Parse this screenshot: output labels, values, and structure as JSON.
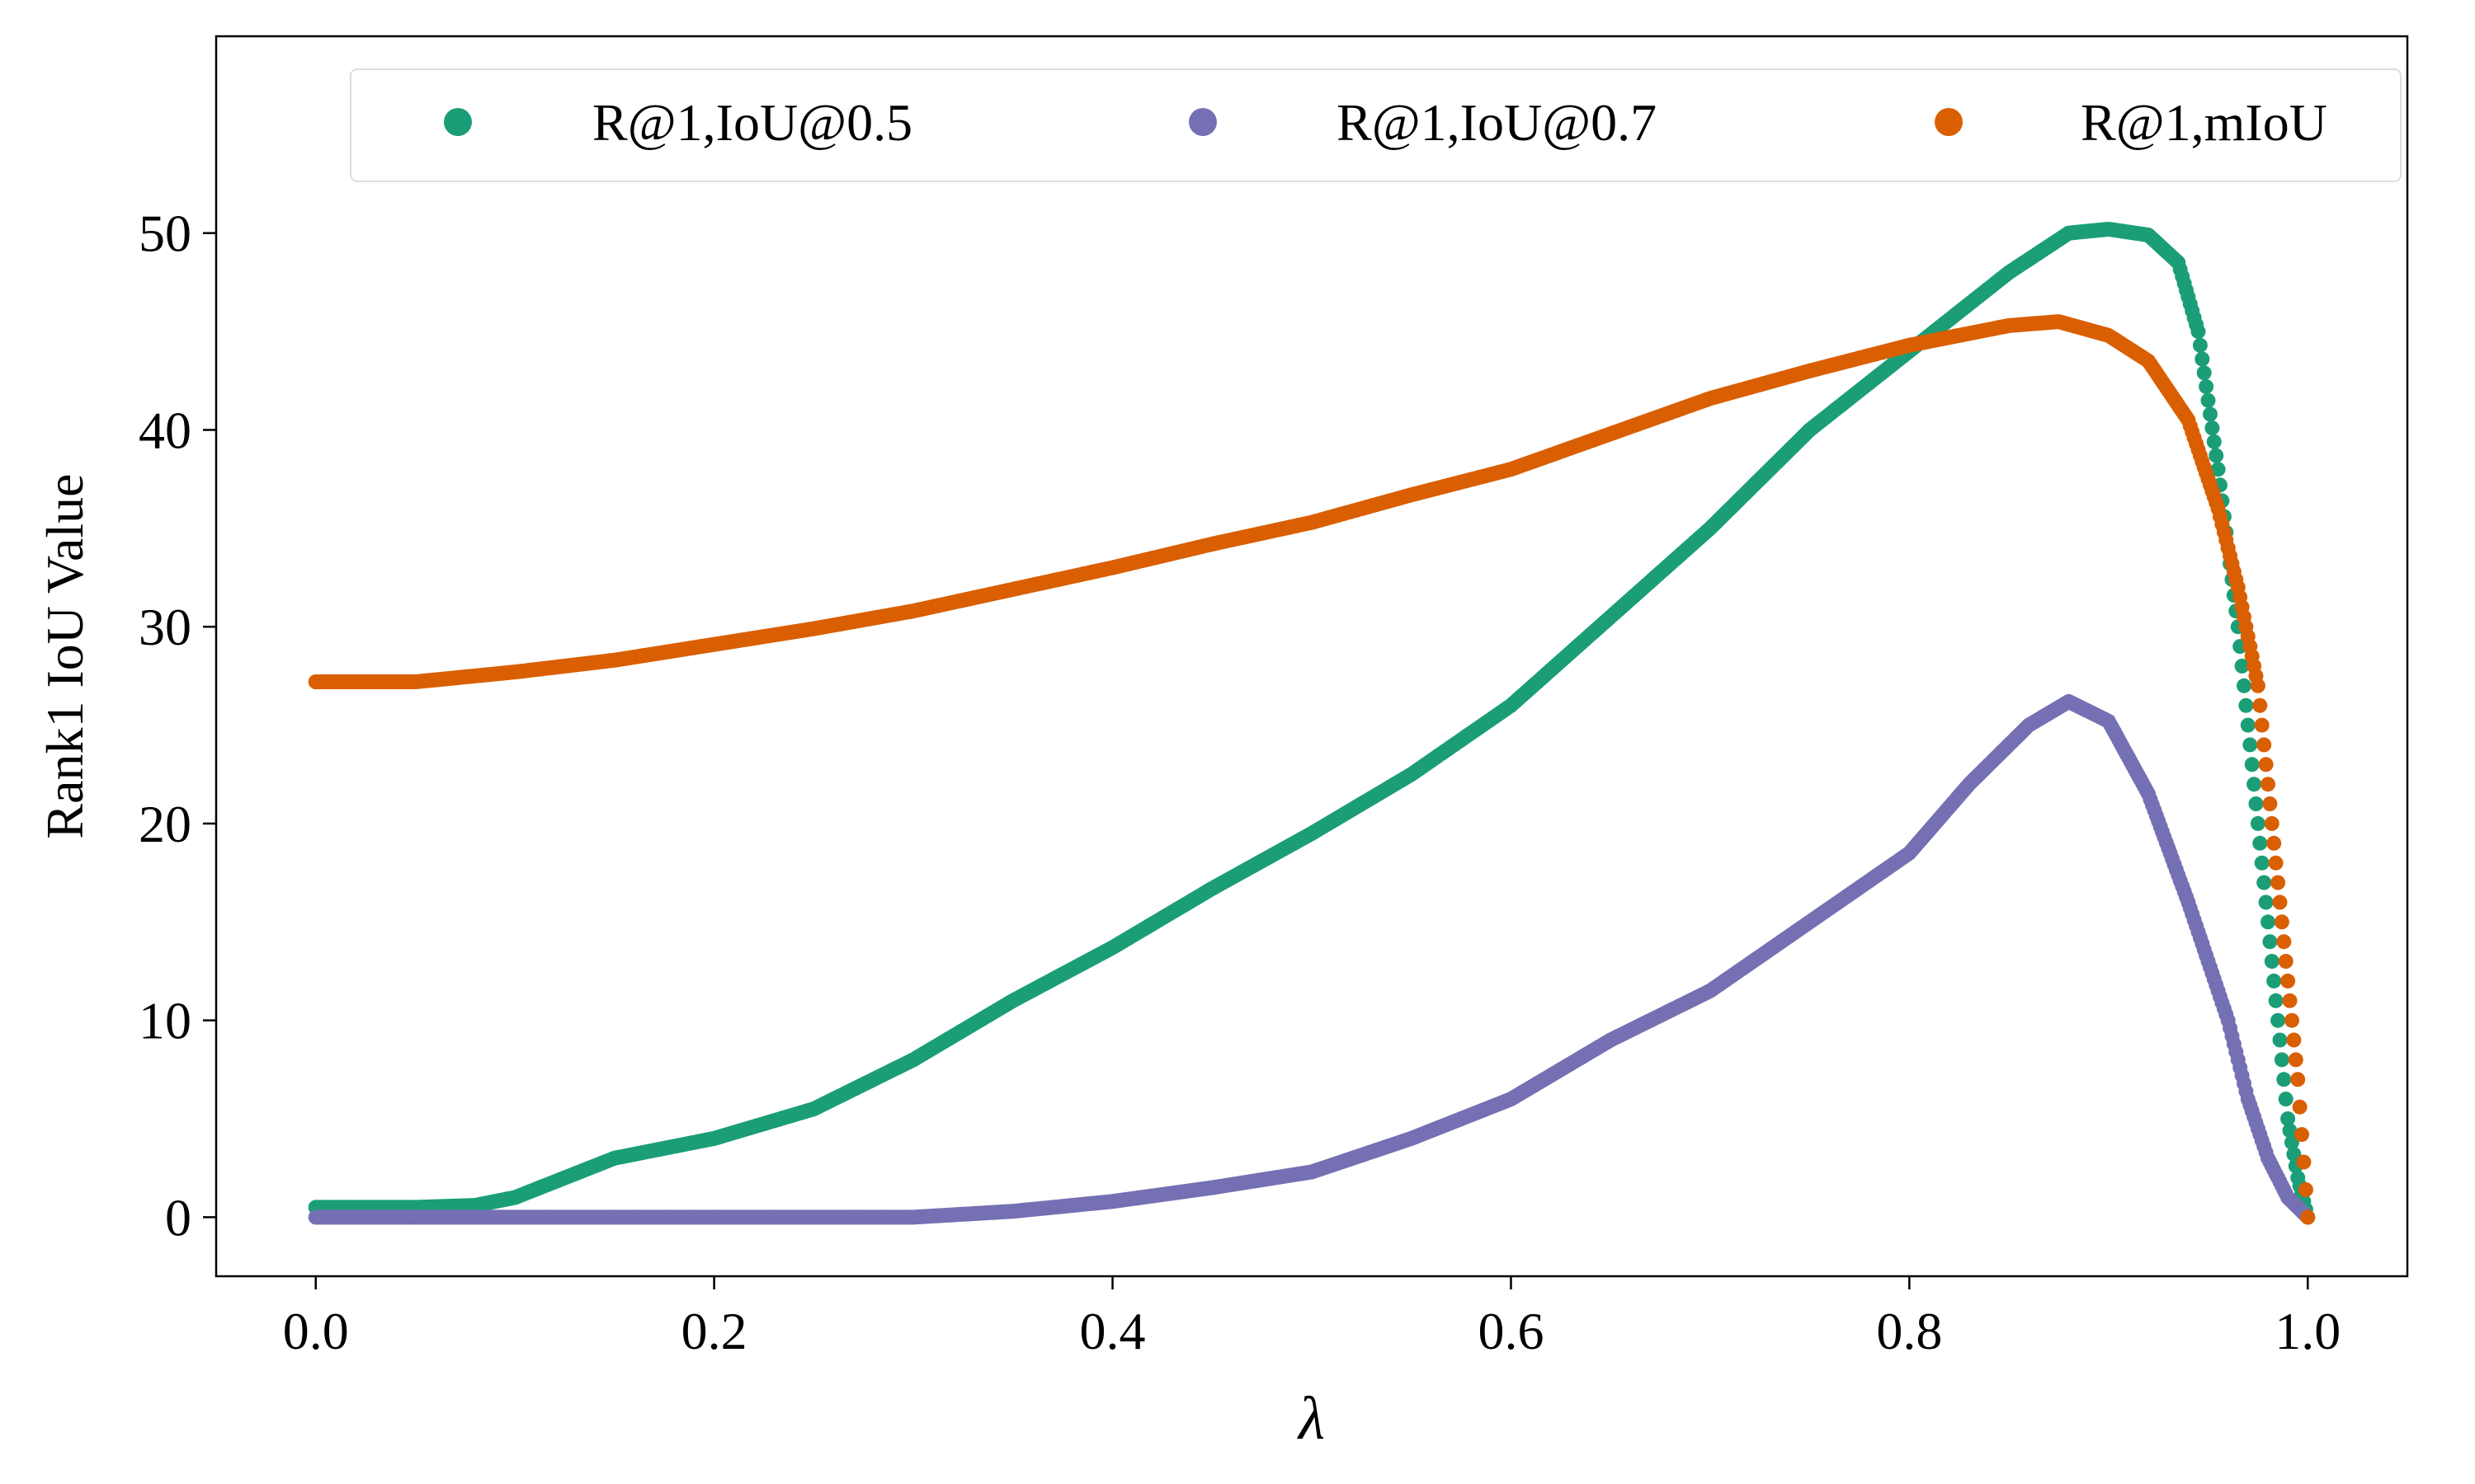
{
  "chart_data": {
    "type": "scatter",
    "xlabel": "λ",
    "ylabel": "Rank1 IoU Value",
    "xlim": [
      -0.05,
      1.05
    ],
    "ylim": [
      -3,
      60
    ],
    "xticks": [
      0.0,
      0.2,
      0.4,
      0.6,
      0.8,
      1.0
    ],
    "xtick_labels": [
      "0.0",
      "0.2",
      "0.4",
      "0.6",
      "0.8",
      "1.0"
    ],
    "yticks": [
      0,
      10,
      20,
      30,
      40,
      50
    ],
    "ytick_labels": [
      "0",
      "10",
      "20",
      "30",
      "40",
      "50"
    ],
    "grid": false,
    "legend": {
      "position": "top",
      "ncol": 3
    },
    "colors": [
      "#1b9e77",
      "#7570b3",
      "#d95f02"
    ],
    "series": [
      {
        "name": "R@1,IoU@0.5",
        "color": "#1b9e77",
        "x": [
          0.0,
          0.05,
          0.08,
          0.1,
          0.12,
          0.15,
          0.2,
          0.25,
          0.3,
          0.35,
          0.4,
          0.45,
          0.5,
          0.55,
          0.6,
          0.65,
          0.7,
          0.75,
          0.8,
          0.85,
          0.88,
          0.9,
          0.92,
          0.935,
          0.945,
          0.955,
          0.965,
          0.97,
          0.975,
          0.98,
          0.985,
          0.99,
          0.995,
          1.0
        ],
        "y": [
          0.5,
          0.5,
          0.6,
          1.0,
          1.8,
          3.0,
          4.0,
          5.5,
          8.0,
          11.0,
          13.7,
          16.7,
          19.5,
          22.5,
          26.0,
          30.5,
          35.0,
          40.0,
          44.0,
          48.0,
          50.0,
          50.2,
          49.9,
          48.5,
          45.0,
          38.0,
          30.0,
          25.0,
          20.0,
          15.0,
          10.0,
          5.0,
          2.0,
          0.0
        ]
      },
      {
        "name": "R@1,IoU@0.7",
        "color": "#7570b3",
        "x": [
          0.0,
          0.1,
          0.2,
          0.3,
          0.35,
          0.4,
          0.45,
          0.5,
          0.55,
          0.6,
          0.65,
          0.7,
          0.75,
          0.8,
          0.83,
          0.86,
          0.88,
          0.9,
          0.92,
          0.94,
          0.96,
          0.97,
          0.98,
          0.99,
          1.0
        ],
        "y": [
          0.0,
          0.0,
          0.0,
          0.0,
          0.3,
          0.8,
          1.5,
          2.3,
          4.0,
          6.0,
          9.0,
          11.5,
          15.0,
          18.5,
          22.0,
          25.0,
          26.2,
          25.2,
          21.5,
          16.0,
          10.0,
          6.0,
          3.0,
          1.0,
          0.0
        ],
        "y_note": ""
      },
      {
        "name": "R@1,mIoU",
        "color": "#d95f02",
        "x": [
          0.0,
          0.05,
          0.1,
          0.15,
          0.2,
          0.25,
          0.3,
          0.35,
          0.4,
          0.45,
          0.5,
          0.55,
          0.6,
          0.65,
          0.7,
          0.75,
          0.8,
          0.85,
          0.875,
          0.9,
          0.92,
          0.94,
          0.955,
          0.965,
          0.975,
          0.98,
          0.985,
          0.99,
          0.995,
          1.0
        ],
        "y": [
          27.2,
          27.2,
          27.7,
          28.3,
          29.1,
          29.9,
          30.8,
          31.9,
          33.0,
          34.2,
          35.3,
          36.7,
          38.0,
          39.8,
          41.6,
          43.0,
          44.3,
          45.3,
          45.5,
          44.8,
          43.5,
          40.5,
          36.0,
          32.0,
          27.0,
          22.0,
          17.0,
          12.0,
          7.0,
          0.0
        ]
      }
    ]
  }
}
